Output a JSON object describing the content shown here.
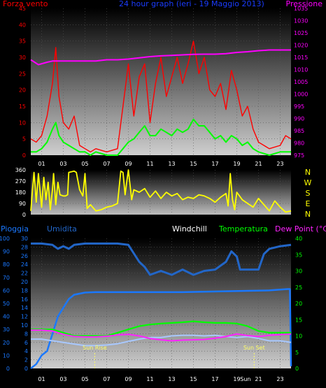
{
  "title": "24 hour graph (ieri - 19 Maggio 2013)",
  "colors": {
    "background": "#000000",
    "gust": "#ff0000",
    "wind": "#00ff00",
    "pressure": "#ff00ff",
    "direction": "#ffff00",
    "rain": "#1a78ff",
    "humidity": "#2266c8",
    "windchill": "#a8c8ff",
    "temperature": "#00ff00",
    "dewpoint": "#ff22ff",
    "sun": "#ffff66",
    "left_axis_top": "#ff0000",
    "left_axis_bottom": "#1a78ff",
    "humidity_axis": "#1a78ff",
    "right_axis_bottom": "#00ff00"
  },
  "x_ticks": [
    "01",
    "03",
    "05",
    "07",
    "09",
    "11",
    "13",
    "15",
    "17",
    "19",
    "21",
    "23"
  ],
  "chart_data": [
    {
      "type": "line",
      "labels": {
        "left": "Forza vento",
        "title": "24 hour graph (ieri - 19 Maggio 2013)",
        "right": "Pressione"
      },
      "ylim": [
        0,
        45
      ],
      "y_ticks": [
        "0",
        "5",
        "10",
        "15",
        "20",
        "25",
        "30",
        "35",
        "40",
        "45"
      ],
      "y2lim": [
        975,
        1035
      ],
      "y2_ticks": [
        "975",
        "980",
        "985",
        "990",
        "995",
        "1000",
        "1005",
        "1010",
        "1015",
        "1020",
        "1025",
        "1030",
        "1035"
      ],
      "series": [
        {
          "name": "Raffica",
          "x": [
            0,
            0.5,
            1,
            1.5,
            2,
            2.3,
            2.6,
            3,
            3.5,
            4,
            4.5,
            5,
            5.5,
            6,
            7,
            8,
            8.5,
            9,
            9.5,
            10,
            10.5,
            11,
            11.5,
            12,
            12.5,
            13,
            13.5,
            14,
            14.5,
            15,
            15.5,
            16,
            16.5,
            17,
            17.5,
            18,
            18.5,
            19,
            19.5,
            20,
            20.5,
            21,
            22,
            23,
            23.5,
            24
          ],
          "values": [
            5,
            4,
            6,
            12,
            22,
            33,
            18,
            10,
            8,
            12,
            3,
            2,
            1,
            2,
            1,
            2,
            15,
            28,
            12,
            24,
            28,
            10,
            22,
            30,
            18,
            24,
            30,
            22,
            28,
            35,
            25,
            30,
            20,
            18,
            22,
            14,
            26,
            20,
            12,
            15,
            8,
            4,
            2,
            3,
            6,
            5
          ]
        },
        {
          "name": "Vento medio",
          "x": [
            0,
            0.5,
            1,
            1.5,
            2,
            2.3,
            2.6,
            3,
            3.5,
            4,
            4.5,
            5,
            5.5,
            6,
            7,
            8,
            8.5,
            9,
            9.5,
            10,
            10.5,
            11,
            11.5,
            12,
            12.5,
            13,
            13.5,
            14,
            14.5,
            15,
            15.5,
            16,
            16.5,
            17,
            17.5,
            18,
            18.5,
            19,
            19.5,
            20,
            20.5,
            21,
            22,
            23,
            23.5,
            24
          ],
          "values": [
            1,
            1,
            2,
            4,
            8,
            10,
            6,
            4,
            3,
            2,
            1,
            1,
            0,
            1,
            0,
            0,
            2,
            4,
            5,
            7,
            9,
            6,
            6,
            8,
            7,
            6,
            8,
            7,
            8,
            11,
            9,
            9,
            7,
            5,
            6,
            4,
            6,
            5,
            3,
            4,
            2,
            1,
            0,
            1,
            1,
            1
          ]
        },
        {
          "name": "Pressione",
          "x": [
            0,
            0.7,
            1.5,
            2,
            3,
            4,
            5,
            6,
            7,
            8,
            9,
            10,
            11,
            12,
            13,
            14,
            15,
            16,
            17,
            18,
            19,
            20,
            21,
            22,
            23,
            24
          ],
          "values": [
            1014,
            1012,
            1013,
            1013.5,
            1013.5,
            1013.5,
            1013.5,
            1013.5,
            1014,
            1014,
            1014.3,
            1014.8,
            1015.3,
            1015.6,
            1015.8,
            1016,
            1016.2,
            1016.3,
            1016.3,
            1016.5,
            1017,
            1017.3,
            1017.7,
            1018,
            1018,
            1018
          ]
        }
      ]
    },
    {
      "type": "line",
      "ylim": [
        0,
        360
      ],
      "y_ticks": [
        "0",
        "90",
        "180",
        "270",
        "360"
      ],
      "right_labels": [
        "N",
        "W",
        "S",
        "E",
        "N"
      ],
      "series": [
        {
          "name": "Direzione",
          "x": [
            0,
            0.3,
            0.5,
            0.7,
            1,
            1.2,
            1.4,
            1.6,
            1.8,
            2,
            2.1,
            2.3,
            2.5,
            2.7,
            3,
            3.2,
            3.4,
            3.5,
            4,
            4.2,
            4.5,
            4.8,
            5,
            5.2,
            5.5,
            6,
            6.5,
            7,
            7.5,
            8,
            8.3,
            8.5,
            8.7,
            9,
            9.3,
            9.5,
            10,
            10.5,
            11,
            11.5,
            12,
            12.5,
            13,
            13.5,
            14,
            14.5,
            15,
            15.5,
            16,
            16.5,
            17,
            17.5,
            18,
            18.2,
            18.4,
            18.6,
            18.8,
            19,
            19.5,
            20,
            20.5,
            21,
            21.5,
            22,
            22.5,
            23,
            23.5,
            24
          ],
          "values": [
            30,
            340,
            100,
            330,
            60,
            300,
            120,
            260,
            40,
            200,
            330,
            80,
            260,
            160,
            150,
            150,
            160,
            340,
            350,
            340,
            200,
            150,
            330,
            50,
            80,
            30,
            40,
            60,
            70,
            90,
            350,
            340,
            160,
            360,
            120,
            200,
            180,
            210,
            140,
            190,
            130,
            180,
            150,
            170,
            120,
            140,
            130,
            160,
            150,
            130,
            100,
            140,
            170,
            70,
            330,
            120,
            40,
            180,
            120,
            90,
            60,
            130,
            80,
            30,
            110,
            60,
            20,
            30
          ]
        }
      ]
    },
    {
      "type": "line",
      "labels": {
        "rain": "Pioggia",
        "humidity": "Umidita",
        "windchill": "Windchill",
        "temperature": "Temperatura",
        "dewpoint": "Dew Point (°C)"
      },
      "ylim": [
        0,
        30
      ],
      "y_ticks": [
        "0",
        "2",
        "4",
        "6",
        "8",
        "10",
        "12",
        "14",
        "16",
        "18",
        "20",
        "22",
        "24",
        "26",
        "28",
        "30"
      ],
      "humidity_lim": [
        0,
        100
      ],
      "humidity_ticks": [
        "0",
        "10",
        "20",
        "30",
        "40",
        "50",
        "60",
        "70",
        "80",
        "90",
        "100"
      ],
      "y2lim": [
        0,
        40
      ],
      "y2_ticks": [
        "0",
        "5",
        "10",
        "15",
        "20",
        "25",
        "30",
        "35",
        "40"
      ],
      "series": [
        {
          "name": "Pioggia",
          "x": [
            0,
            0.5,
            1,
            1.5,
            2,
            2.5,
            3,
            3.5,
            4,
            5,
            6,
            7,
            8,
            10,
            12,
            14,
            16,
            18,
            20,
            22,
            23,
            23.7,
            23.9,
            24
          ],
          "values": [
            0,
            1,
            3,
            4,
            8,
            12,
            14,
            16,
            17,
            17.5,
            17.6,
            17.6,
            17.6,
            17.6,
            17.6,
            17.6,
            17.7,
            17.8,
            17.9,
            18,
            18.2,
            18.3,
            18.3,
            0.5
          ]
        },
        {
          "name": "Umidita",
          "x": [
            0,
            1,
            2,
            2.5,
            3,
            3.5,
            4,
            5,
            6,
            7,
            8,
            9,
            10,
            10.5,
            11,
            12,
            13,
            14,
            15,
            16,
            17,
            18,
            18.5,
            19,
            19.3,
            20,
            21,
            21.5,
            22,
            23,
            24
          ],
          "values": [
            96,
            96,
            95,
            92,
            94,
            92,
            95,
            96,
            96,
            96,
            96,
            95,
            82,
            78,
            72,
            75,
            72,
            76,
            72,
            75,
            76,
            82,
            90,
            86,
            76,
            76,
            76,
            88,
            92,
            94,
            95
          ]
        },
        {
          "name": "Windchill",
          "x": [
            0,
            1,
            2,
            3,
            4,
            5,
            6,
            7,
            8,
            9,
            10,
            11,
            12,
            13,
            14,
            15,
            16,
            17,
            18,
            19,
            20,
            21,
            22,
            23,
            24
          ],
          "values": [
            9,
            9,
            8.5,
            8,
            7.5,
            7,
            7,
            7.2,
            7.6,
            8.3,
            9,
            9.5,
            9.5,
            10,
            10.2,
            10.2,
            10,
            10.2,
            9.8,
            9.5,
            9.8,
            9.2,
            8.5,
            8.5,
            8
          ]
        },
        {
          "name": "Temperatura",
          "x": [
            0,
            1,
            2,
            3,
            4,
            5,
            6,
            7,
            8,
            9,
            10,
            11,
            12,
            13,
            14,
            15,
            16,
            17,
            18,
            19,
            20,
            21,
            22,
            23,
            24
          ],
          "values": [
            12,
            12,
            12,
            11,
            10,
            10,
            10,
            10,
            11,
            12,
            13,
            13.5,
            13.8,
            14,
            14.2,
            14.5,
            14.2,
            14,
            14,
            13.8,
            13,
            11.5,
            11,
            11,
            11
          ]
        },
        {
          "name": "Dew Point",
          "x": [
            0,
            1,
            2,
            3,
            4,
            5,
            6,
            7,
            8,
            9,
            10,
            11,
            12,
            13,
            14,
            15,
            16,
            17,
            18,
            19,
            20,
            21,
            22,
            23,
            24
          ],
          "values": [
            11.8,
            11.8,
            11.5,
            10.5,
            9.8,
            9.7,
            9.7,
            9.9,
            10.3,
            10.5,
            10,
            9.2,
            8.8,
            8.5,
            8.7,
            8.8,
            8.9,
            9.3,
            9.8,
            10.6,
            10.1,
            9.8,
            10.2,
            10.4,
            10.6
          ]
        }
      ],
      "markers": [
        {
          "label": "Sun Rise",
          "x": 5.9
        },
        {
          "label": "Sun Set",
          "x": 20.6
        }
      ],
      "x_ticks_extra": {
        "at": 19.8,
        "label": "Sun"
      }
    }
  ]
}
